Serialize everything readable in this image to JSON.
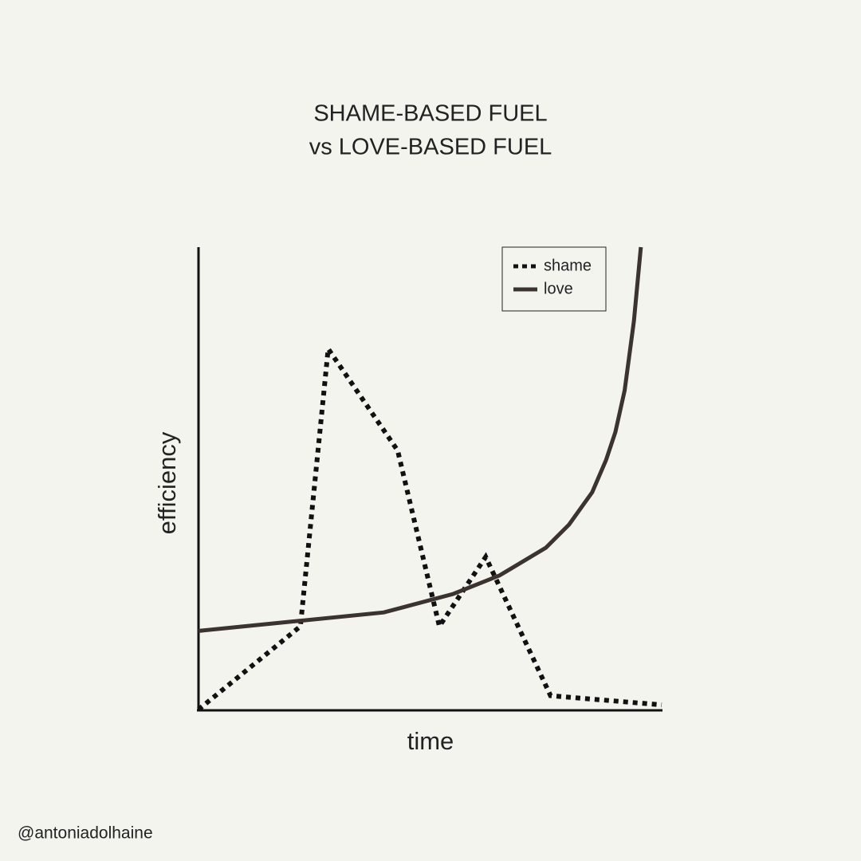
{
  "chart_data": {
    "type": "line",
    "title": [
      "SHAME-BASED FUEL",
      "vs LOVE-BASED FUEL"
    ],
    "xlabel": "time",
    "ylabel": "efficiency",
    "xlim": [
      0,
      100
    ],
    "ylim": [
      0,
      100
    ],
    "legend": "upper right",
    "series": [
      {
        "name": "shame",
        "color": "#111111",
        "dash": "dotted",
        "x": [
          0,
          22,
          28,
          43,
          52,
          62,
          76,
          100
        ],
        "values": [
          0,
          18,
          78,
          56,
          18,
          33,
          3,
          1
        ]
      },
      {
        "name": "love",
        "color": "#3a3330",
        "dash": "solid",
        "x": [
          0,
          20,
          40,
          55,
          65,
          75,
          80,
          85,
          88,
          90,
          92,
          94,
          95.5
        ],
        "values": [
          17,
          19,
          21,
          25,
          29,
          35,
          40,
          47,
          54,
          60,
          69,
          84,
          100
        ]
      }
    ]
  },
  "credit": "@antoniadolhaine"
}
